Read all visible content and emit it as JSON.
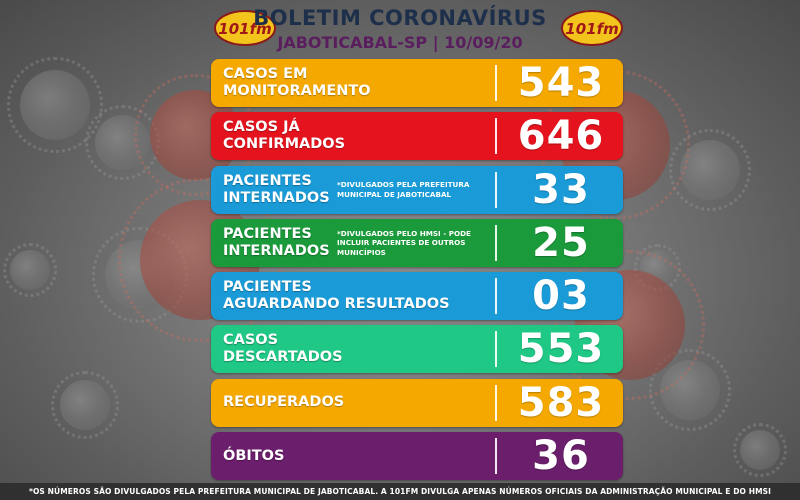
{
  "header": {
    "title": "BOLETIM CORONAVÍRUS",
    "subtitle": "JABOTICABAL-SP | 10/09/20",
    "logo_text": "101fm"
  },
  "colors": {
    "orange": "#f5a800",
    "red": "#e5131d",
    "blue": "#1a9bd8",
    "green": "#1a9a3a",
    "teal": "#1fc885",
    "purple": "#6b1e6b",
    "title": "#1d2f4a",
    "subtitle": "#5a1d5e"
  },
  "rows": [
    {
      "label": "CASOS EM\nMONITORAMENTO",
      "note": "",
      "value": "543",
      "color": "#f5a800"
    },
    {
      "label": "CASOS JÁ\nCONFIRMADOS",
      "note": "",
      "value": "646",
      "color": "#e5131d"
    },
    {
      "label": "PACIENTES\nINTERNADOS",
      "note": "*DIVULGADOS PELA PREFEITURA MUNICIPAL DE JABOTICABAL",
      "value": "33",
      "color": "#1a9bd8"
    },
    {
      "label": "PACIENTES\nINTERNADOS",
      "note": "*DIVULGADOS PELO HMSI - PODE INCLUIR PACIENTES DE OUTROS MUNICÍPIOS",
      "value": "25",
      "color": "#1a9a3a"
    },
    {
      "label": "PACIENTES\nAGUARDANDO RESULTADOS",
      "note": "",
      "value": "03",
      "color": "#1a9bd8"
    },
    {
      "label": "CASOS\nDESCARTADOS",
      "note": "",
      "value": "553",
      "color": "#1fc885"
    },
    {
      "label": "RECUPERADOS",
      "note": "",
      "value": "583",
      "color": "#f5a800"
    },
    {
      "label": "ÓBITOS",
      "note": "",
      "value": "36",
      "color": "#6b1e6b"
    }
  ],
  "footer": {
    "text": "*OS NÚMEROS SÃO DIVULGADOS PELA PREFEITURA MUNICIPAL DE JABOTICABAL. A 101FM DIVULGA APENAS NÚMEROS OFICIAIS DA ADMINISTRAÇÃO MUNICIPAL E DO HMSI"
  }
}
